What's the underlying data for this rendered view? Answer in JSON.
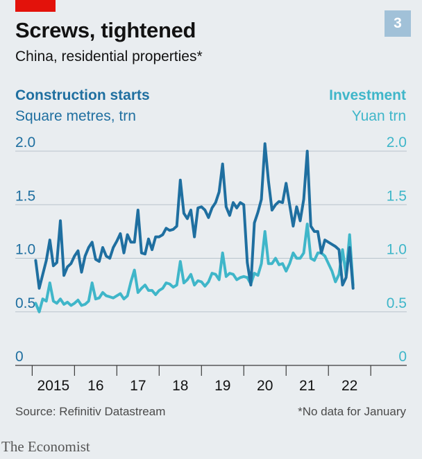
{
  "header": {
    "title": "Screws, tightened",
    "subtitle": "China, residential properties*",
    "badge": "3"
  },
  "legend": {
    "left_series": "Construction starts",
    "left_unit": "Square metres, trn",
    "right_series": "Investment",
    "right_unit": "Yuan trn"
  },
  "footer": {
    "source": "Source: Refinitiv Datastream",
    "note": "*No data for January",
    "brand": "The Economist"
  },
  "colors": {
    "background": "#e9edf0",
    "construction": "#1f6fa0",
    "investment": "#3fb6c9",
    "brand_red": "#e3120b"
  },
  "chart_data": {
    "type": "line",
    "x_start": 2015.083,
    "x_step_months": 1,
    "x_ticks": [
      2015,
      2016,
      2017,
      2018,
      2019,
      2020,
      2021,
      2022,
      2023
    ],
    "x_tick_labels": [
      "2015",
      "16",
      "17",
      "18",
      "19",
      "20",
      "21",
      "22"
    ],
    "ylim": [
      0,
      2.0
    ],
    "y_ticks_left": [
      "2.0",
      "1.5",
      "1.0",
      "0.5",
      "0"
    ],
    "y_ticks_right": [
      "2.0",
      "1.5",
      "1.0",
      "0.5",
      "0"
    ],
    "grid": true,
    "series": [
      {
        "name": "Construction starts",
        "axis": "left",
        "values": [
          0.98,
          0.72,
          0.85,
          0.98,
          1.17,
          0.93,
          0.96,
          1.35,
          0.84,
          0.92,
          0.95,
          1.02,
          1.07,
          0.87,
          1.02,
          1.1,
          1.15,
          0.99,
          0.97,
          1.1,
          1.02,
          1.0,
          1.1,
          1.16,
          1.23,
          1.05,
          1.22,
          1.15,
          1.15,
          1.45,
          1.05,
          1.04,
          1.18,
          1.08,
          1.2,
          1.2,
          1.22,
          1.28,
          1.26,
          1.27,
          1.3,
          1.73,
          1.42,
          1.37,
          1.45,
          1.2,
          1.47,
          1.48,
          1.45,
          1.38,
          1.47,
          1.52,
          1.62,
          1.88,
          1.48,
          1.4,
          1.52,
          1.47,
          1.52,
          1.5,
          0.96,
          0.75,
          1.33,
          1.43,
          1.55,
          2.07,
          1.72,
          1.45,
          1.5,
          1.53,
          1.52,
          1.7,
          1.5,
          1.3,
          1.48,
          1.35,
          1.55,
          2.0,
          1.3,
          1.25,
          1.25,
          1.05,
          1.17,
          1.15,
          1.13,
          1.11,
          1.08,
          0.75,
          0.82,
          1.1,
          0.72
        ]
      },
      {
        "name": "Investment",
        "axis": "right",
        "values": [
          0.58,
          0.5,
          0.62,
          0.6,
          0.77,
          0.6,
          0.58,
          0.62,
          0.57,
          0.59,
          0.56,
          0.58,
          0.61,
          0.56,
          0.57,
          0.6,
          0.77,
          0.62,
          0.63,
          0.68,
          0.65,
          0.64,
          0.63,
          0.65,
          0.67,
          0.62,
          0.65,
          0.78,
          0.89,
          0.68,
          0.72,
          0.75,
          0.7,
          0.7,
          0.66,
          0.7,
          0.72,
          0.77,
          0.76,
          0.73,
          0.75,
          0.97,
          0.77,
          0.8,
          0.85,
          0.75,
          0.79,
          0.78,
          0.74,
          0.78,
          0.86,
          0.85,
          0.8,
          1.05,
          0.83,
          0.86,
          0.85,
          0.8,
          0.82,
          0.83,
          0.82,
          0.76,
          0.86,
          0.84,
          0.95,
          1.25,
          0.95,
          0.95,
          1.0,
          0.94,
          0.95,
          0.88,
          0.95,
          1.05,
          1.0,
          1.0,
          1.05,
          1.32,
          1.0,
          0.98,
          1.05,
          1.05,
          1.02,
          0.95,
          0.88,
          0.78,
          0.85,
          1.08,
          0.84,
          1.22,
          0.75
        ]
      }
    ]
  }
}
